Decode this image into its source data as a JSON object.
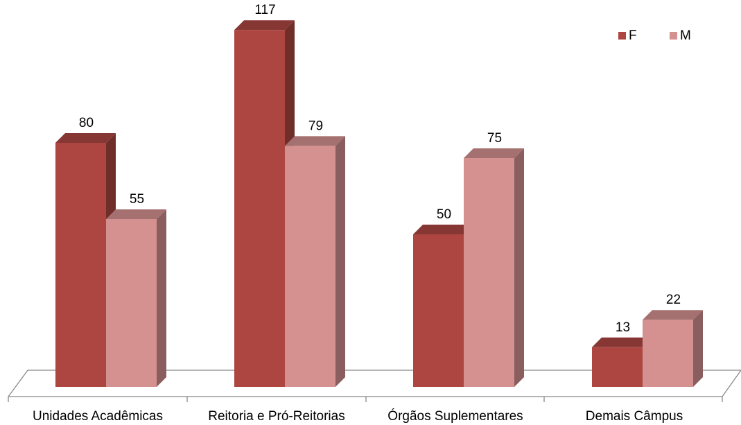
{
  "chart_data": {
    "type": "bar3d",
    "categories": [
      "Unidades Acadêmicas",
      "Reitoria e Pró-Reitorias",
      "Órgãos Suplementares",
      "Demais Câmpus"
    ],
    "series": [
      {
        "name": "F",
        "color": "#ad4641",
        "values": [
          80,
          117,
          50,
          13
        ]
      },
      {
        "name": "M",
        "color": "#d49190",
        "values": [
          55,
          79,
          75,
          22
        ]
      }
    ]
  }
}
